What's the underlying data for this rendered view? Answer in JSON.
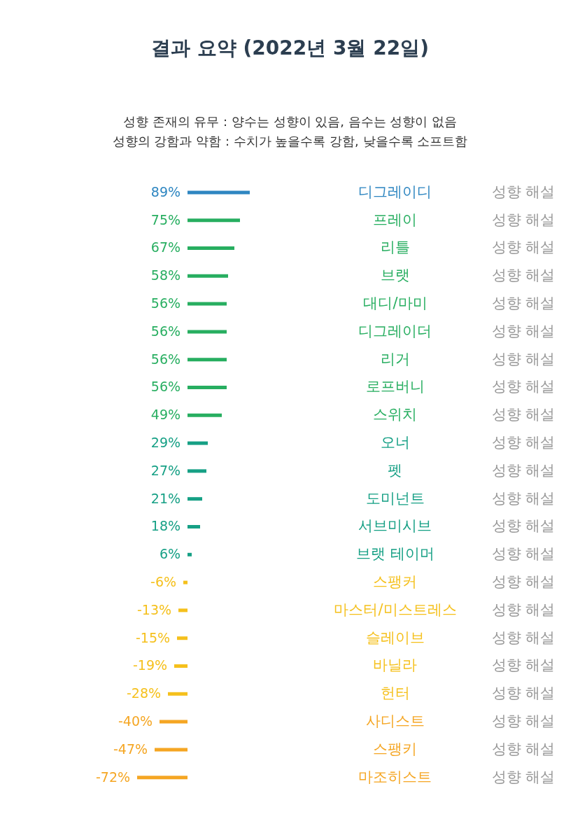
{
  "chart_data": {
    "type": "bar",
    "orientation": "horizontal",
    "title": "결과 요약 (2022년 3월 22일)",
    "subtitle": "성향 존재의 유무 : 양수는 성향이 있음, 음수는 성향이 없음\n성향의 강함과 약함 : 수치가 높을수록 강함, 낮을수록 소프트함",
    "categories": [
      "디그레이디",
      "프레이",
      "리틀",
      "브랫",
      "대디/마미",
      "디그레이더",
      "리거",
      "로프버니",
      "스위치",
      "오너",
      "펫",
      "도미넌트",
      "서브미시브",
      "브랫 테이머",
      "스팽커",
      "마스터/미스트레스",
      "슬레이브",
      "바닐라",
      "헌터",
      "사디스트",
      "스팽키",
      "마조히스트"
    ],
    "values": [
      89,
      75,
      67,
      58,
      56,
      56,
      56,
      56,
      49,
      29,
      27,
      21,
      18,
      6,
      -6,
      -13,
      -15,
      -19,
      -28,
      -40,
      -47,
      -72
    ],
    "value_labels": [
      "89%",
      "75%",
      "67%",
      "58%",
      "56%",
      "56%",
      "56%",
      "56%",
      "49%",
      "29%",
      "27%",
      "21%",
      "18%",
      "6%",
      "-6%",
      "-13%",
      "-15%",
      "-19%",
      "-28%",
      "-40%",
      "-47%",
      "-72%"
    ],
    "colors": [
      "#2e86c1",
      "#27ae60",
      "#27ae60",
      "#27ae60",
      "#27ae60",
      "#27ae60",
      "#27ae60",
      "#27ae60",
      "#27ae60",
      "#16a085",
      "#16a085",
      "#16a085",
      "#16a085",
      "#16a085",
      "#f5c01c",
      "#f5c01c",
      "#f5c01c",
      "#f5c01c",
      "#f5c01c",
      "#f5a623",
      "#f5a623",
      "#f5a623"
    ],
    "annotations": [
      "성향 해설",
      "성향 해설",
      "성향 해설",
      "성향 해설",
      "성향 해설",
      "성향 해설",
      "성향 해설",
      "성향 해설",
      "성향 해설",
      "성향 해설",
      "성향 해설",
      "성향 해설",
      "성향 해설",
      "성향 해설",
      "성향 해설",
      "성향 해설",
      "성향 해설",
      "성향 해설",
      "성향 해설",
      "성향 해설",
      "성향 해설",
      "성향 해설"
    ]
  }
}
